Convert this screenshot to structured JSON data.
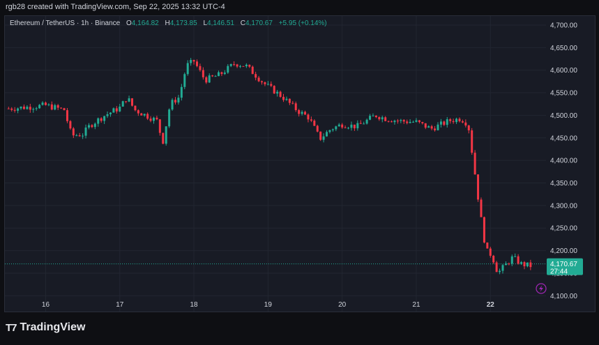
{
  "header": {
    "attribution": "rgb28 created with TradingView.com, Sep 22, 2025 13:32 UTC-4"
  },
  "legend": {
    "symbol": "Ethereum / TetherUS · 1h · Binance",
    "o_label": "O",
    "o_value": "4,164.82",
    "h_label": "H",
    "h_value": "4,173.85",
    "l_label": "L",
    "l_value": "4,146.51",
    "c_label": "C",
    "c_value": "4,170.67",
    "change": "+5.95 (+0.14%)"
  },
  "price_tag": {
    "price": "4,170.67",
    "countdown": "27:44"
  },
  "footer": {
    "brand": "TradingView"
  },
  "colors": {
    "up": "#22ab94",
    "down": "#f23645",
    "background": "#181b25",
    "grid": "#222631",
    "text": "#d1d4dc",
    "price_tag": "#22ab94"
  },
  "chart_data": {
    "type": "candlestick",
    "symbol": "Ethereum / TetherUS",
    "interval": "1h",
    "exchange": "Binance",
    "x_ticks": [
      "16",
      "17",
      "18",
      "19",
      "20",
      "21",
      "22"
    ],
    "y_ticks": [
      "4,100.00",
      "4,150.00",
      "4,200.00",
      "4,250.00",
      "4,300.00",
      "4,350.00",
      "4,400.00",
      "4,450.00",
      "4,500.00",
      "4,550.00",
      "4,600.00",
      "4,650.00",
      "4,700.00"
    ],
    "y_tick_values": [
      4100,
      4150,
      4200,
      4250,
      4300,
      4350,
      4400,
      4450,
      4500,
      4550,
      4600,
      4650,
      4700
    ],
    "ylim": [
      4065,
      4720
    ],
    "x_range_days": [
      15.45,
      22.75
    ],
    "current_price": 4170.67,
    "grid": true,
    "anchors": [
      [
        15.5,
        4515
      ],
      [
        15.75,
        4518
      ],
      [
        16.0,
        4522
      ],
      [
        16.25,
        4512
      ],
      [
        16.35,
        4455
      ],
      [
        16.5,
        4458
      ],
      [
        16.6,
        4478
      ],
      [
        16.8,
        4500
      ],
      [
        17.0,
        4517
      ],
      [
        17.1,
        4540
      ],
      [
        17.2,
        4512
      ],
      [
        17.35,
        4500
      ],
      [
        17.5,
        4488
      ],
      [
        17.58,
        4440
      ],
      [
        17.68,
        4525
      ],
      [
        17.8,
        4540
      ],
      [
        17.9,
        4610
      ],
      [
        18.0,
        4620
      ],
      [
        18.15,
        4578
      ],
      [
        18.35,
        4590
      ],
      [
        18.55,
        4615
      ],
      [
        18.7,
        4610
      ],
      [
        18.95,
        4570
      ],
      [
        19.2,
        4540
      ],
      [
        19.4,
        4510
      ],
      [
        19.55,
        4495
      ],
      [
        19.7,
        4448
      ],
      [
        19.85,
        4470
      ],
      [
        20.0,
        4480
      ],
      [
        20.2,
        4475
      ],
      [
        20.45,
        4500
      ],
      [
        20.6,
        4492
      ],
      [
        20.8,
        4487
      ],
      [
        21.0,
        4485
      ],
      [
        21.2,
        4470
      ],
      [
        21.45,
        4488
      ],
      [
        21.6,
        4493
      ],
      [
        21.7,
        4480
      ],
      [
        21.78,
        4385
      ],
      [
        21.86,
        4285
      ],
      [
        21.94,
        4200
      ],
      [
        22.02,
        4190
      ],
      [
        22.1,
        4150
      ],
      [
        22.3,
        4185
      ],
      [
        22.42,
        4170
      ],
      [
        22.58,
        4165
      ]
    ]
  }
}
